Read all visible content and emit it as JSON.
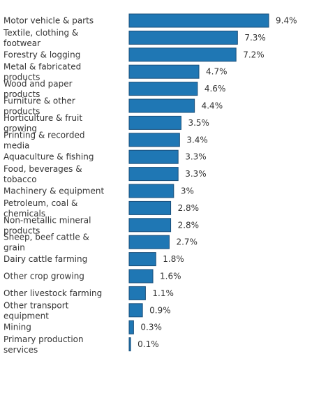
{
  "chart_data": {
    "type": "bar",
    "orientation": "horizontal",
    "title": "",
    "xlabel": "",
    "ylabel": "",
    "xlim": [
      0,
      9.4
    ],
    "grid": false,
    "legend": "none",
    "bar_color": "#1f77b4",
    "value_suffix": "%",
    "categories": [
      "Motor vehicle & parts",
      "Textile, clothing & footwear",
      "Forestry & logging",
      "Metal & fabricated products",
      "Wood and paper products",
      "Furniture & other products",
      "Horticulture & fruit growing",
      "Printing & recorded media",
      "Aquaculture & fishing",
      "Food, beverages & tobacco",
      "Machinery & equipment",
      "Petroleum, coal & chemicals",
      "Non-metallic mineral products",
      "Sheep, beef cattle & grain",
      "Dairy cattle farming",
      "Other crop growing",
      "Other livestock farming",
      "Other transport equipment",
      "Mining",
      "Primary production services"
    ],
    "label_lines": [
      [
        "Motor vehicle & parts"
      ],
      [
        "Textile, clothing &",
        "footwear"
      ],
      [
        "Forestry & logging"
      ],
      [
        "Metal & fabricated",
        "products"
      ],
      [
        "Wood and paper",
        "products"
      ],
      [
        "Furniture & other",
        "products"
      ],
      [
        "Horticulture & fruit",
        "growing"
      ],
      [
        "Printing & recorded",
        "media"
      ],
      [
        "Aquaculture & fishing"
      ],
      [
        "Food, beverages &",
        "tobacco"
      ],
      [
        "Machinery & equipment"
      ],
      [
        "Petroleum, coal &",
        "chemicals"
      ],
      [
        "Non-metallic mineral",
        "products"
      ],
      [
        "Sheep, beef cattle &",
        "grain"
      ],
      [
        "Dairy cattle farming"
      ],
      [
        "Other crop growing"
      ],
      [
        "Other livestock farming"
      ],
      [
        "Other transport",
        "equipment"
      ],
      [
        "Mining"
      ],
      [
        "Primary production",
        "services"
      ]
    ],
    "values": [
      9.4,
      7.3,
      7.2,
      4.7,
      4.6,
      4.4,
      3.5,
      3.4,
      3.3,
      3.3,
      3,
      2.8,
      2.8,
      2.7,
      1.8,
      1.6,
      1.1,
      0.9,
      0.3,
      0.1
    ],
    "value_labels": [
      "9.4%",
      "7.3%",
      "7.2%",
      "4.7%",
      "4.6%",
      "4.4%",
      "3.5%",
      "3.4%",
      "3.3%",
      "3.3%",
      "3%",
      "2.8%",
      "2.8%",
      "2.7%",
      "1.8%",
      "1.6%",
      "1.1%",
      "0.9%",
      "0.3%",
      "0.1%"
    ]
  }
}
